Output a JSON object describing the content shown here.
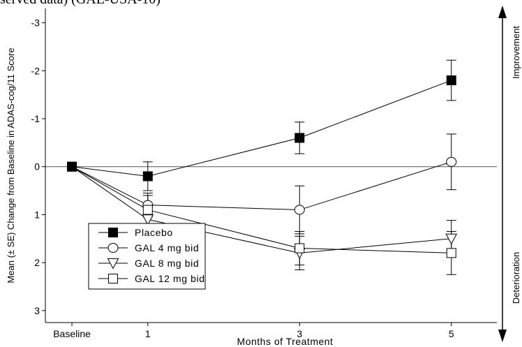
{
  "caption_fragment": "served data) (GAL-USA-10)",
  "chart_data": {
    "type": "line",
    "title": "",
    "xlabel": "Months of Treatment",
    "ylabel": "Mean (± SE) Change from Baseline in ADAS-cog/11 Score",
    "x_tick_labels": [
      "Baseline",
      "1",
      "3",
      "5"
    ],
    "x_values": [
      0,
      1,
      3,
      5
    ],
    "xlim": [
      -0.35,
      5.6
    ],
    "ylim": [
      3.25,
      -3.3
    ],
    "y_axis_inverted": true,
    "y_ticks": [
      -3,
      -2,
      -1,
      0,
      1,
      2,
      3
    ],
    "y_tick_labels": [
      "-3",
      "-2",
      "-1",
      "0",
      "1",
      "2",
      "3"
    ],
    "reference_line_y": 0,
    "right_annotation": {
      "top": "Improvement",
      "bottom": "Deterioration"
    },
    "legend_position": "lower-left",
    "series": [
      {
        "name": "Placebo",
        "marker": "filled-square",
        "values": [
          0,
          0.2,
          -0.6,
          -1.8
        ],
        "se": [
          0,
          0.3,
          0.33,
          0.42
        ]
      },
      {
        "name": "GAL 4 mg bid",
        "marker": "open-circle",
        "values": [
          0,
          0.8,
          0.9,
          -0.1
        ],
        "se": [
          0,
          0.25,
          0.5,
          0.58
        ]
      },
      {
        "name": "GAL 8 mg bid",
        "marker": "open-triangle-down",
        "values": [
          0,
          1.1,
          1.8,
          1.5
        ],
        "se": [
          0,
          0.3,
          0.35,
          0.38
        ]
      },
      {
        "name": "GAL 12 mg bid",
        "marker": "open-square",
        "values": [
          0,
          0.9,
          1.7,
          1.8
        ],
        "se": [
          0,
          0.3,
          0.35,
          0.45
        ]
      }
    ]
  }
}
